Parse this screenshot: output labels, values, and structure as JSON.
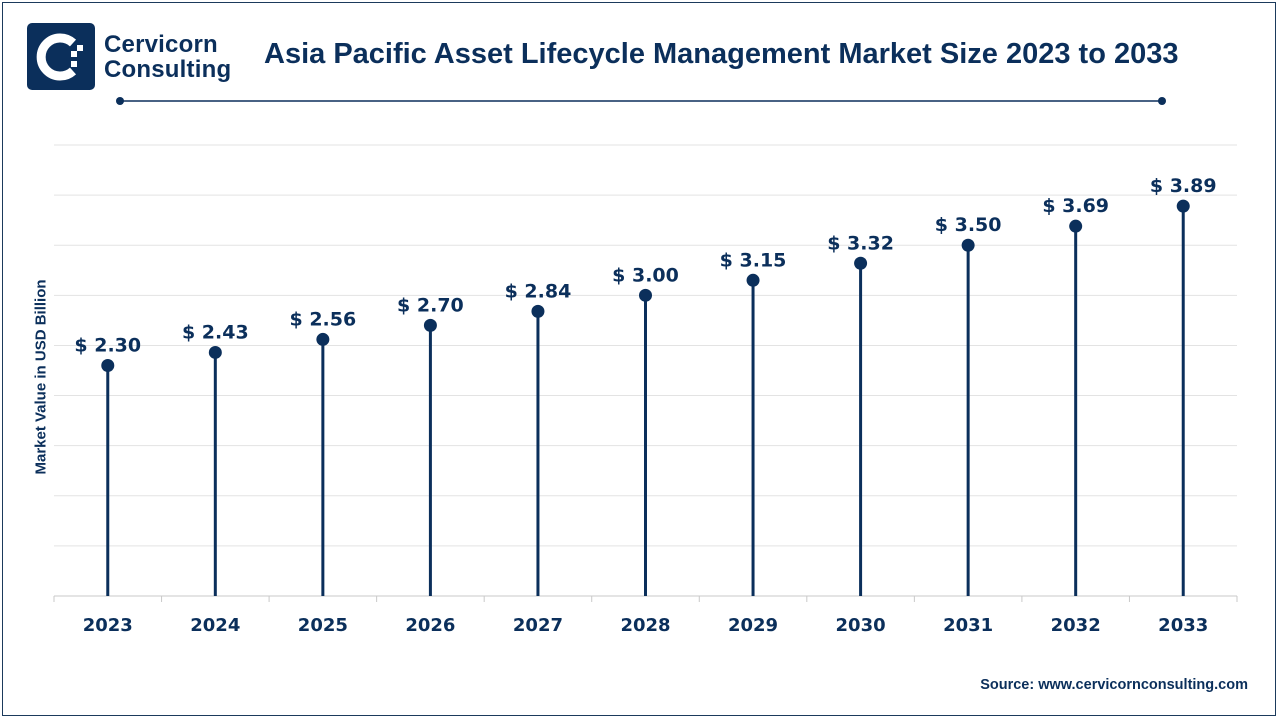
{
  "brand": {
    "line1": "Cervicorn",
    "line2": "Consulting"
  },
  "colors": {
    "primary": "#0b2f5b",
    "grid": "#e3e3e3",
    "axis": "#c9c9c9"
  },
  "source_text": "Source: www.cervicornconsulting.com",
  "chart_data": {
    "type": "line",
    "subtype": "lollipop",
    "title": "Asia Pacific Asset Lifecycle Management Market Size 2023 to 2033",
    "xlabel": "",
    "ylabel": "Market Value in USD Billion",
    "categories": [
      "2023",
      "2024",
      "2025",
      "2026",
      "2027",
      "2028",
      "2029",
      "2030",
      "2031",
      "2032",
      "2033"
    ],
    "series": [
      {
        "values": [
          2.3,
          2.43,
          2.56,
          2.7,
          2.84,
          3.0,
          3.15,
          3.32,
          3.5,
          3.69,
          3.89
        ],
        "labels": [
          "$ 2.30",
          "$ 2.43",
          "$ 2.56",
          "$ 2.70",
          "$ 2.84",
          "$ 3.00",
          "$ 3.15",
          "$ 3.32",
          "$ 3.50",
          "$ 3.69",
          "$ 3.89"
        ]
      }
    ],
    "ylim": [
      0,
      4.5
    ],
    "grid": true,
    "legend": "none"
  }
}
